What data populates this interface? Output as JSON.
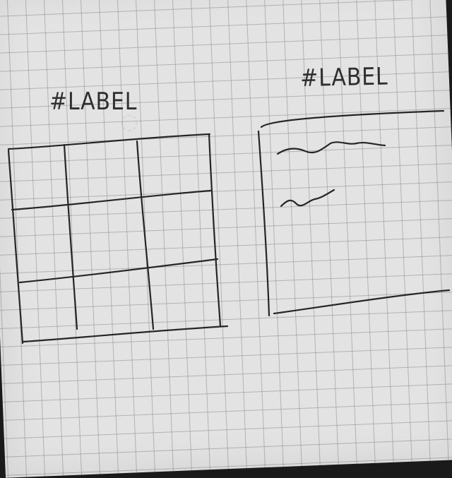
{
  "labels": {
    "left": "#LABEL",
    "right": "#LABEL"
  },
  "colors": {
    "paper": "#e3e3e3",
    "grid": "#8a8a8a",
    "pencil": "#262626",
    "background": "#1a1a1a"
  },
  "widgets": {
    "left": "table-grid",
    "right": "text-panel"
  }
}
